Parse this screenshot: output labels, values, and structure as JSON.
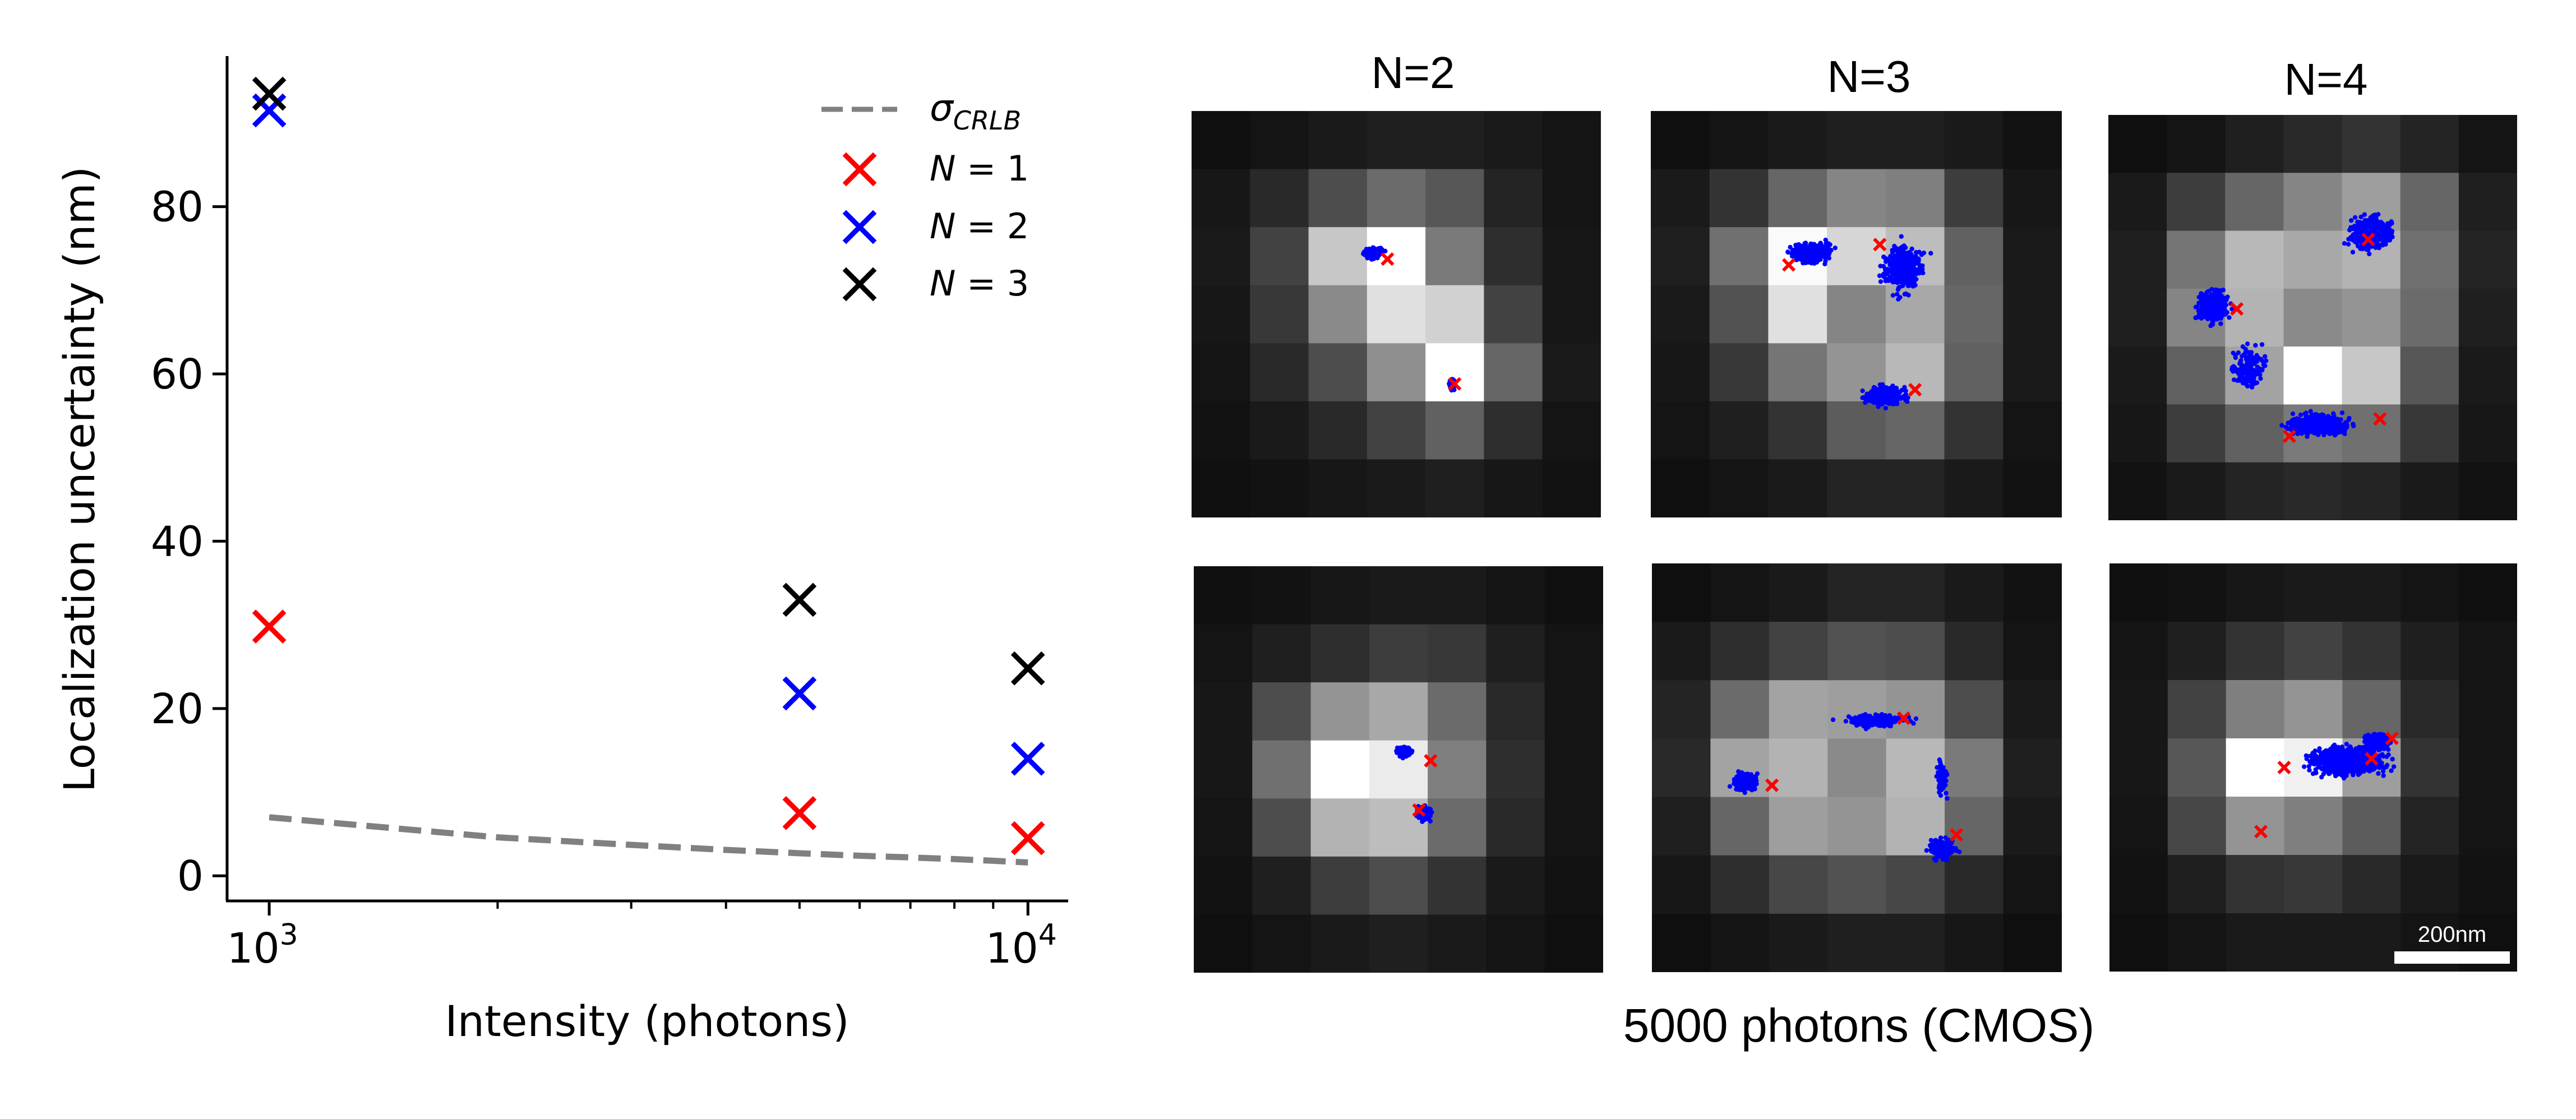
{
  "chart_data": [
    {
      "type": "scatter",
      "xlabel": "Intensity (photons)",
      "ylabel": "Localization uncertainty (nm)",
      "xscale": "log",
      "xlim": [
        880,
        11300
      ],
      "ylim": [
        -3,
        98
      ],
      "x_ticks": [
        {
          "value": 1000,
          "base": "10",
          "exp": "3"
        },
        {
          "value": 10000,
          "base": "10",
          "exp": "4"
        }
      ],
      "x_minor_ticks": [
        2000,
        3000,
        4000,
        5000,
        6000,
        7000,
        8000,
        9000
      ],
      "y_ticks": [
        0,
        20,
        40,
        60,
        80
      ],
      "grid": false,
      "legend_position": "top-right",
      "series": [
        {
          "name": "σ",
          "name_sub": "CRLB",
          "kind": "line",
          "color": "#808080",
          "dash": true,
          "x": [
            1000,
            2000,
            3000,
            4000,
            5000,
            6000,
            7000,
            8000,
            9000,
            10000
          ],
          "y": [
            7.0,
            4.6,
            3.7,
            3.1,
            2.7,
            2.4,
            2.2,
            2.0,
            1.8,
            1.6
          ]
        },
        {
          "name": "N = 1",
          "legend_var": "N",
          "legend_val": "1",
          "kind": "scatter",
          "marker": "x",
          "color": "#ff0000",
          "x": [
            1000,
            5000,
            10000
          ],
          "y": [
            29.8,
            7.5,
            4.5
          ]
        },
        {
          "name": "N = 2",
          "legend_var": "N",
          "legend_val": "2",
          "kind": "scatter",
          "marker": "x",
          "color": "#0000ff",
          "x": [
            1000,
            5000,
            10000
          ],
          "y": [
            91.5,
            21.8,
            14.0
          ]
        },
        {
          "name": "N = 3",
          "legend_var": "N",
          "legend_val": "3",
          "kind": "scatter",
          "marker": "x",
          "color": "#000000",
          "x": [
            1000,
            5000,
            10000
          ],
          "y": [
            93.5,
            33.0,
            24.8
          ]
        }
      ]
    },
    {
      "type": "heatmap",
      "column_titles": [
        "N=2",
        "N=3",
        "N=4"
      ],
      "caption": "5000 photons (CMOS)",
      "scalebar_label": "200nm",
      "cluster_color": "#0000ff",
      "true_marker_color": "#ff0000",
      "panels": [
        {
          "grid": [
            [
              6,
              8,
              10,
              12,
              12,
              10,
              8
            ],
            [
              9,
              16,
              30,
              42,
              34,
              14,
              8
            ],
            [
              10,
              26,
              78,
              100,
              48,
              18,
              9
            ],
            [
              9,
              22,
              54,
              88,
              82,
              26,
              9
            ],
            [
              8,
              16,
              30,
              56,
              100,
              40,
              10
            ],
            [
              7,
              10,
              16,
              26,
              38,
              18,
              8
            ],
            [
              6,
              7,
              9,
              10,
              12,
              9,
              7
            ]
          ],
          "true_positions": [
            [
              3.35,
              2.55
            ],
            [
              4.5,
              4.7
            ]
          ],
          "clusters": [
            {
              "cx": 3.1,
              "cy": 2.45,
              "dx": 0.18,
              "dy": 0.09,
              "n": 160
            },
            {
              "cx": 4.45,
              "cy": 4.7,
              "dx": 0.06,
              "dy": 0.1,
              "n": 100
            }
          ]
        },
        {
          "grid": [
            [
              6,
              8,
              10,
              12,
              12,
              10,
              7
            ],
            [
              10,
              20,
              40,
              52,
              50,
              24,
              9
            ],
            [
              12,
              44,
              98,
              84,
              74,
              38,
              10
            ],
            [
              10,
              32,
              88,
              52,
              66,
              40,
              10
            ],
            [
              9,
              22,
              46,
              58,
              72,
              38,
              10
            ],
            [
              8,
              12,
              20,
              36,
              40,
              20,
              8
            ],
            [
              6,
              8,
              10,
              14,
              14,
              10,
              7
            ]
          ],
          "true_positions": [
            [
              2.35,
              2.65
            ],
            [
              3.9,
              2.3
            ],
            [
              4.5,
              4.8
            ]
          ],
          "clusters": [
            {
              "cx": 2.75,
              "cy": 2.45,
              "dx": 0.36,
              "dy": 0.17,
              "n": 340
            },
            {
              "cx": 4.3,
              "cy": 2.7,
              "dx": 0.35,
              "dy": 0.42,
              "n": 420
            },
            {
              "cx": 4.0,
              "cy": 4.9,
              "dx": 0.35,
              "dy": 0.16,
              "n": 300
            }
          ]
        },
        {
          "grid": [
            [
              6,
              8,
              12,
              16,
              20,
              14,
              8
            ],
            [
              10,
              24,
              40,
              52,
              62,
              40,
              12
            ],
            [
              12,
              46,
              72,
              66,
              70,
              44,
              14
            ],
            [
              12,
              52,
              70,
              54,
              58,
              42,
              12
            ],
            [
              10,
              38,
              64,
              100,
              78,
              34,
              10
            ],
            [
              9,
              24,
              38,
              48,
              44,
              22,
              9
            ],
            [
              7,
              10,
              14,
              16,
              14,
              10,
              7
            ]
          ],
          "true_positions": [
            [
              2.2,
              3.35
            ],
            [
              4.45,
              2.15
            ],
            [
              3.1,
              5.55
            ],
            [
              4.65,
              5.25
            ]
          ],
          "clusters": [
            {
              "cx": 4.5,
              "cy": 2.05,
              "dx": 0.38,
              "dy": 0.3,
              "n": 420
            },
            {
              "cx": 1.8,
              "cy": 3.3,
              "dx": 0.28,
              "dy": 0.3,
              "n": 280
            },
            {
              "cx": 3.6,
              "cy": 5.35,
              "dx": 0.55,
              "dy": 0.2,
              "n": 480
            },
            {
              "cx": 2.4,
              "cy": 4.4,
              "dx": 0.28,
              "dy": 0.42,
              "n": 160
            }
          ]
        },
        {
          "grid": [
            [
              6,
              7,
              9,
              10,
              10,
              8,
              6
            ],
            [
              8,
              12,
              18,
              24,
              22,
              12,
              8
            ],
            [
              9,
              30,
              58,
              66,
              42,
              16,
              8
            ],
            [
              9,
              44,
              100,
              92,
              50,
              18,
              8
            ],
            [
              8,
              30,
              70,
              74,
              42,
              16,
              8
            ],
            [
              7,
              12,
              24,
              30,
              20,
              10,
              7
            ],
            [
              6,
              8,
              10,
              12,
              10,
              8,
              6
            ]
          ],
          "true_positions": [
            [
              4.05,
              3.35
            ],
            [
              3.85,
              4.2
            ]
          ],
          "clusters": [
            {
              "cx": 3.6,
              "cy": 3.2,
              "dx": 0.13,
              "dy": 0.09,
              "n": 140
            },
            {
              "cx": 3.95,
              "cy": 4.25,
              "dx": 0.12,
              "dy": 0.13,
              "n": 150
            }
          ]
        },
        {
          "grid": [
            [
              6,
              8,
              10,
              14,
              14,
              10,
              7
            ],
            [
              10,
              18,
              26,
              32,
              30,
              16,
              8
            ],
            [
              14,
              42,
              64,
              62,
              58,
              30,
              10
            ],
            [
              16,
              64,
              70,
              54,
              72,
              48,
              12
            ],
            [
              12,
              40,
              62,
              58,
              70,
              40,
              10
            ],
            [
              9,
              18,
              28,
              32,
              28,
              16,
              8
            ],
            [
              6,
              8,
              10,
              12,
              12,
              9,
              6
            ]
          ],
          "true_positions": [
            [
              2.05,
              3.8
            ],
            [
              4.3,
              2.65
            ],
            [
              5.2,
              4.65
            ]
          ],
          "clusters": [
            {
              "cx": 1.6,
              "cy": 3.75,
              "dx": 0.2,
              "dy": 0.16,
              "n": 240
            },
            {
              "cx": 3.8,
              "cy": 2.7,
              "dx": 0.55,
              "dy": 0.1,
              "n": 260
            },
            {
              "cx": 4.95,
              "cy": 4.9,
              "dx": 0.22,
              "dy": 0.18,
              "n": 260
            },
            {
              "cx": 4.95,
              "cy": 3.7,
              "dx": 0.1,
              "dy": 0.3,
              "n": 70
            }
          ]
        },
        {
          "grid": [
            [
              6,
              7,
              9,
              10,
              10,
              8,
              6
            ],
            [
              8,
              12,
              20,
              26,
              20,
              12,
              8
            ],
            [
              9,
              26,
              50,
              58,
              40,
              16,
              8
            ],
            [
              9,
              34,
              100,
              94,
              62,
              20,
              8
            ],
            [
              8,
              28,
              58,
              50,
              36,
              14,
              8
            ],
            [
              7,
              12,
              20,
              22,
              16,
              10,
              7
            ],
            [
              6,
              8,
              10,
              10,
              10,
              8,
              6
            ]
          ],
          "true_positions": [
            [
              3.0,
              3.5
            ],
            [
              4.5,
              3.35
            ],
            [
              4.85,
              3.0
            ],
            [
              2.6,
              4.6
            ]
          ],
          "clusters": [
            {
              "cx": 4.1,
              "cy": 3.4,
              "dx": 0.65,
              "dy": 0.25,
              "n": 900
            },
            {
              "cx": 4.6,
              "cy": 3.05,
              "dx": 0.25,
              "dy": 0.15,
              "n": 200
            }
          ]
        }
      ]
    }
  ]
}
